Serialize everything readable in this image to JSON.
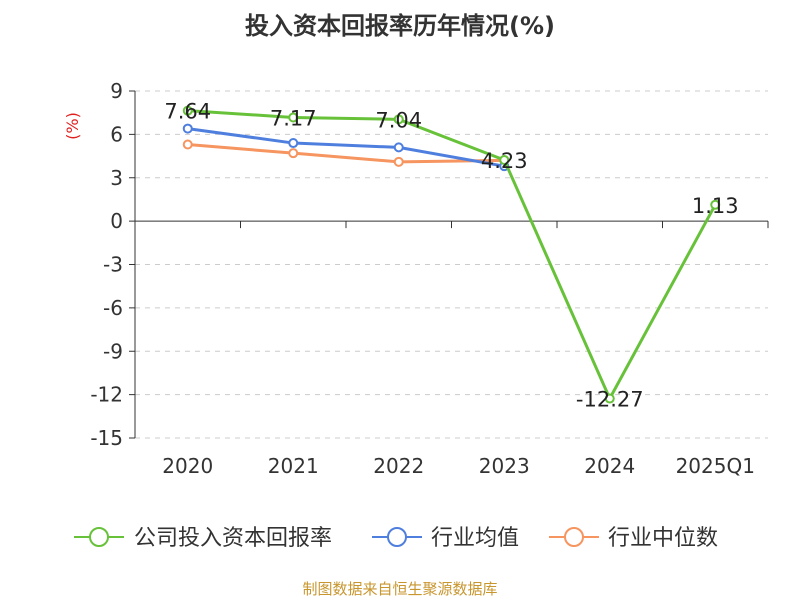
{
  "title": "投入资本回报率历年情况(%)",
  "source": "制图数据来自恒生聚源数据库",
  "colors": {
    "company": "#67c23a",
    "industry_avg": "#4f7fde",
    "industry_median": "#f6955f",
    "unit_label": "#e02020",
    "grid": "#cccccc",
    "source": "#c8962e"
  },
  "chart_data": {
    "type": "line",
    "title": "投入资本回报率历年情况(%)",
    "ylabel": "(%)",
    "categories": [
      "2020",
      "2021",
      "2022",
      "2023",
      "2024",
      "2025Q1"
    ],
    "ylim": [
      -15,
      9
    ],
    "yticks": [
      9,
      6,
      3,
      0,
      -3,
      -6,
      -9,
      -12,
      -15
    ],
    "ytick_labels": [
      "9",
      "6",
      "3",
      "0",
      "-3",
      "-6",
      "-9",
      "-12",
      "-15"
    ],
    "grid": true,
    "legend_position": "bottom",
    "series": [
      {
        "name": "公司投入资本回报率",
        "color": "#67c23a",
        "values": [
          7.64,
          7.17,
          7.04,
          4.23,
          -12.27,
          1.13
        ],
        "labels": [
          "7.64",
          "7.17",
          "7.04",
          "4.23",
          "-12.27",
          "1.13"
        ]
      },
      {
        "name": "行业均值",
        "color": "#4f7fde",
        "values": [
          6.4,
          5.4,
          5.1,
          3.8,
          null,
          null
        ]
      },
      {
        "name": "行业中位数",
        "color": "#f6955f",
        "values": [
          5.3,
          4.7,
          4.1,
          4.2,
          null,
          null
        ]
      }
    ]
  }
}
